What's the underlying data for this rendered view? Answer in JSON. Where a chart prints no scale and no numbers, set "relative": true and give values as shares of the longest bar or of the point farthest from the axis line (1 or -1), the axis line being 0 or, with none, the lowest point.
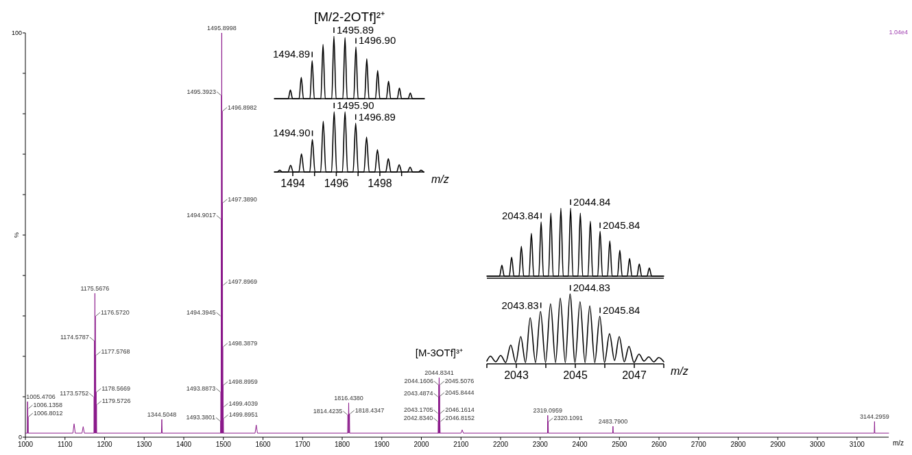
{
  "chart_data": [
    {
      "type": "line",
      "xlabel": "m/z",
      "ylabel": "%",
      "xlim": [
        1000,
        3180
      ],
      "ylim": [
        0,
        100
      ],
      "xticks": [
        1000,
        1100,
        1200,
        1300,
        1400,
        1500,
        1600,
        1700,
        1800,
        1900,
        2000,
        2100,
        2200,
        2300,
        2400,
        2500,
        2600,
        2700,
        2800,
        2900,
        3000,
        3100
      ],
      "yticks": [
        0,
        {
          "value": 10,
          "label": null
        },
        {
          "value": 20,
          "label": null
        },
        {
          "value": 30,
          "label": null
        },
        {
          "value": 40,
          "label": null
        },
        {
          "value": 50,
          "label": null
        },
        {
          "value": 60,
          "label": null
        },
        {
          "value": 70,
          "label": null
        },
        {
          "value": 80,
          "label": null
        },
        {
          "value": 90,
          "label": null
        },
        100
      ],
      "x": [
        1000,
        1004.9,
        1005.4706,
        1005.8,
        1006.1358,
        1006.45,
        1006.8012,
        1007.3,
        1120,
        1123,
        1126,
        1143,
        1146,
        1149,
        1173.1,
        1173.5752,
        1174.1,
        1174.5787,
        1175.1,
        1175.5676,
        1176.1,
        1176.572,
        1177.1,
        1177.5768,
        1178.1,
        1178.5669,
        1179.1,
        1179.5726,
        1180.1,
        1343.5,
        1344.5048,
        1345.5,
        1492.9,
        1493.3801,
        1493.6,
        1493.8873,
        1494.1,
        1494.3945,
        1494.65,
        1494.9017,
        1495.15,
        1495.3923,
        1495.65,
        1495.8998,
        1496.15,
        1496.5,
        1496.8982,
        1497.15,
        1497.389,
        1497.65,
        1497.8969,
        1498.15,
        1498.3879,
        1498.65,
        1498.8959,
        1499.15,
        1499.4039,
        1499.65,
        1499.8951,
        1500.3,
        1580,
        1583,
        1586,
        1813.8,
        1814.4235,
        1815.4,
        1816.438,
        1817.4,
        1818.4347,
        1819,
        2042.5,
        2042.834,
        2043,
        2043.1705,
        2043.33,
        2043.4874,
        2043.82,
        2044.1606,
        2044.5,
        2044.8341,
        2045.17,
        2045.5076,
        2045.68,
        2045.8444,
        2046,
        2046.1614,
        2046.5,
        2046.8152,
        2047.3,
        2100,
        2103,
        2106,
        2318.5,
        2319.0959,
        2319.6,
        2320.1091,
        2320.6,
        2483,
        2483.79,
        2484.6,
        3143.5,
        3144.2959,
        3145,
        3180
      ],
      "series": [
        {
          "color": "#8b1a8b",
          "values": [
            1,
            1,
            8.8,
            1,
            7.1,
            1,
            5.1,
            1,
            1,
            3.3,
            1,
            1,
            2.6,
            1,
            1,
            10,
            1,
            23.9,
            1,
            35.6,
            1,
            30,
            1,
            20.3,
            1,
            11.2,
            1,
            8.1,
            1,
            1,
            4.4,
            1,
            1,
            4,
            1,
            11.2,
            1,
            30,
            1,
            54,
            1,
            84.6,
            1,
            100,
            1,
            1,
            80.7,
            1,
            58,
            1,
            37.6,
            1,
            22.4,
            1,
            12.9,
            1,
            7.5,
            1,
            4.7,
            1,
            1,
            3,
            1,
            1,
            5.6,
            1,
            8.5,
            1,
            5.8,
            1,
            1,
            3.9,
            1,
            5.9,
            1,
            10,
            1,
            13,
            1,
            14.7,
            1,
            13,
            1,
            10.2,
            1,
            5.9,
            1,
            3.9,
            1,
            1,
            1.8,
            1,
            1,
            5.4,
            1,
            3.9,
            1,
            1,
            2.7,
            1,
            1,
            3.9,
            1,
            1
          ]
        }
      ],
      "annotations": [
        {
          "text": "1005.4706",
          "x": 1005.4706,
          "y": 8.8
        },
        {
          "text": "1006.1358",
          "x": 1006.1358,
          "y": 7.1
        },
        {
          "text": "1006.8012",
          "x": 1006.8012,
          "y": 5.1
        },
        {
          "text": "1173.5752",
          "x": 1173.5752,
          "y": 10
        },
        {
          "text": "1174.5787",
          "x": 1174.5787,
          "y": 23.9
        },
        {
          "text": "1175.5676",
          "x": 1175.5676,
          "y": 35.6
        },
        {
          "text": "1176.5720",
          "x": 1176.572,
          "y": 30
        },
        {
          "text": "1177.5768",
          "x": 1177.5768,
          "y": 20.3
        },
        {
          "text": "1178.5669",
          "x": 1178.5669,
          "y": 11.2
        },
        {
          "text": "1179.5726",
          "x": 1179.5726,
          "y": 8.1
        },
        {
          "text": "1344.5048",
          "x": 1344.5048,
          "y": 4.4
        },
        {
          "text": "1493.3801",
          "x": 1493.3801,
          "y": 4
        },
        {
          "text": "1493.8873",
          "x": 1493.8873,
          "y": 11.2
        },
        {
          "text": "1494.3945",
          "x": 1494.3945,
          "y": 30
        },
        {
          "text": "1494.9017",
          "x": 1494.9017,
          "y": 54
        },
        {
          "text": "1495.3923",
          "x": 1495.3923,
          "y": 84.6
        },
        {
          "text": "1495.8998",
          "x": 1495.8998,
          "y": 100
        },
        {
          "text": "1496.8982",
          "x": 1496.8982,
          "y": 80.7
        },
        {
          "text": "1497.3890",
          "x": 1497.389,
          "y": 58
        },
        {
          "text": "1497.8969",
          "x": 1497.8969,
          "y": 37.6
        },
        {
          "text": "1498.3879",
          "x": 1498.3879,
          "y": 22.4
        },
        {
          "text": "1498.8959",
          "x": 1498.8959,
          "y": 12.9
        },
        {
          "text": "1499.4039",
          "x": 1499.4039,
          "y": 7.5
        },
        {
          "text": "1499.8951",
          "x": 1499.8951,
          "y": 4.7
        },
        {
          "text": "1814.4235",
          "x": 1814.4235,
          "y": 5.6
        },
        {
          "text": "1816.4380",
          "x": 1816.438,
          "y": 8.5
        },
        {
          "text": "1818.4347",
          "x": 1818.4347,
          "y": 5.8
        },
        {
          "text": "2042.8340",
          "x": 2042.834,
          "y": 3.9
        },
        {
          "text": "2043.1705",
          "x": 2043.1705,
          "y": 5.9
        },
        {
          "text": "2043.4874",
          "x": 2043.4874,
          "y": 10
        },
        {
          "text": "2044.1606",
          "x": 2044.1606,
          "y": 13
        },
        {
          "text": "2044.8341",
          "x": 2044.8341,
          "y": 14.7
        },
        {
          "text": "[M-3OTf]³⁺",
          "x": 2044.8341,
          "y": 14.7
        },
        {
          "text": "2045.5076",
          "x": 2045.5076,
          "y": 13
        },
        {
          "text": "2045.8444",
          "x": 2045.8444,
          "y": 10.2
        },
        {
          "text": "2046.1614",
          "x": 2046.1614,
          "y": 5.9
        },
        {
          "text": "2046.8152",
          "x": 2046.8152,
          "y": 3.9
        },
        {
          "text": "2319.0959",
          "x": 2319.0959,
          "y": 5.4
        },
        {
          "text": "2320.1091",
          "x": 2320.1091,
          "y": 3.9
        },
        {
          "text": "2483.7900",
          "x": 2483.79,
          "y": 2.7
        },
        {
          "text": "3144.2959",
          "x": 3144.2959,
          "y": 3.9
        },
        "1.04e4"
      ]
    },
    {
      "type": "line",
      "title": "[M/2-2OTf]²⁺",
      "relative": true,
      "xlim": [
        1493.15,
        1500.05
      ],
      "x": [
        1493.15,
        1493.79,
        1493.89,
        1493.99,
        1494.29,
        1494.39,
        1494.49,
        1494.79,
        1494.89,
        1494.99,
        1495.29,
        1495.39,
        1495.49,
        1495.79,
        1495.89,
        1495.99,
        1496.3,
        1496.4,
        1496.5,
        1496.8,
        1496.9,
        1497,
        1497.3,
        1497.4,
        1497.5,
        1497.8,
        1497.9,
        1498,
        1498.3,
        1498.4,
        1498.5,
        1498.8,
        1498.9,
        1499,
        1499.3,
        1499.4,
        1499.5,
        1500.05
      ],
      "series": [
        {
          "color": "#000000",
          "values": [
            0,
            0,
            0.14,
            0,
            0,
            0.34,
            0,
            0,
            0.61,
            0,
            0,
            0.87,
            0,
            0,
            1,
            0,
            0,
            0.98,
            0,
            0,
            0.83,
            0,
            0,
            0.64,
            0,
            0,
            0.45,
            0,
            0,
            0.28,
            0,
            0,
            0.17,
            0,
            0,
            0.09,
            0,
            0
          ]
        }
      ],
      "annotations": [
        {
          "text": "1494.89",
          "x": 1494.89,
          "y": 0.61
        },
        {
          "text": "1495.89",
          "x": 1495.89,
          "y": 1
        },
        {
          "text": "1496.90",
          "x": 1496.9,
          "y": 0.83
        }
      ]
    },
    {
      "type": "line",
      "xlabel": "m/z",
      "relative": true,
      "tick_labels": "x",
      "xlim": [
        1493.15,
        1500.05
      ],
      "xticks": [
        1494,
        {
          "value": 1495,
          "label": null
        },
        1496,
        {
          "value": 1497,
          "label": null
        },
        1498,
        {
          "value": 1499,
          "label": null
        }
      ],
      "x": [
        1493.15,
        1493.28,
        1493.4,
        1493.52,
        1493.78,
        1493.9,
        1494.02,
        1494.28,
        1494.4,
        1494.52,
        1494.78,
        1494.9,
        1495.02,
        1495.28,
        1495.4,
        1495.52,
        1495.78,
        1495.9,
        1496.02,
        1496.28,
        1496.4,
        1496.52,
        1496.77,
        1496.89,
        1497.01,
        1497.27,
        1497.39,
        1497.51,
        1497.77,
        1497.89,
        1498.01,
        1498.27,
        1498.39,
        1498.51,
        1498.77,
        1498.89,
        1499.01,
        1499.27,
        1499.39,
        1499.51,
        1499.77,
        1499.89,
        1500.01
      ],
      "series": [
        {
          "color": "#000000",
          "values": [
            0,
            0,
            0.03,
            0,
            0,
            0.11,
            0,
            0,
            0.3,
            0,
            0,
            0.54,
            0,
            0,
            0.84,
            0,
            0,
            1,
            0,
            0,
            1,
            0,
            0,
            0.81,
            0,
            0,
            0.58,
            0,
            0,
            0.37,
            0,
            0,
            0.22,
            0,
            0,
            0.12,
            0,
            0,
            0.08,
            0,
            0,
            0.03,
            0
          ]
        }
      ],
      "annotations": [
        {
          "text": "1494.90",
          "x": 1494.9,
          "y": 0.54
        },
        {
          "text": "1495.90",
          "x": 1495.9,
          "y": 1
        },
        {
          "text": "1496.89",
          "x": 1496.89,
          "y": 0.81
        }
      ]
    },
    {
      "type": "line",
      "relative": true,
      "xlim": [
        2042,
        2048
      ],
      "x": [
        2042,
        2042.43,
        2042.51,
        2042.59,
        2042.76,
        2042.84,
        2042.92,
        2043.09,
        2043.17,
        2043.25,
        2043.43,
        2043.51,
        2043.59,
        2043.76,
        2043.84,
        2043.92,
        2044.09,
        2044.17,
        2044.25,
        2044.43,
        2044.51,
        2044.59,
        2044.76,
        2044.84,
        2044.92,
        2045.09,
        2045.17,
        2045.25,
        2045.43,
        2045.51,
        2045.59,
        2045.76,
        2045.84,
        2045.92,
        2046.09,
        2046.17,
        2046.25,
        2046.43,
        2046.51,
        2046.59,
        2046.76,
        2046.84,
        2046.92,
        2047.09,
        2047.17,
        2047.25,
        2047.43,
        2047.51,
        2047.59,
        2048
      ],
      "series": [
        {
          "color": "#000000",
          "values": [
            0,
            0,
            0.16,
            0,
            0,
            0.28,
            0,
            0,
            0.44,
            0,
            0,
            0.63,
            0,
            0,
            0.8,
            0,
            0,
            0.93,
            0,
            0,
            1,
            0,
            0,
            1,
            0,
            0,
            0.93,
            0,
            0,
            0.81,
            0,
            0,
            0.66,
            0,
            0,
            0.52,
            0,
            0,
            0.38,
            0,
            0,
            0.26,
            0,
            0,
            0.18,
            0,
            0,
            0.12,
            0,
            0
          ]
        }
      ],
      "annotations": [
        {
          "text": "2043.84",
          "x": 2043.84,
          "y": 0.8
        },
        {
          "text": "2044.84",
          "x": 2044.84,
          "y": 1
        },
        {
          "text": "2045.84",
          "x": 2045.84,
          "y": 0.66
        }
      ]
    },
    {
      "type": "line",
      "xlabel": "m/z",
      "relative": true,
      "tick_labels": "x",
      "xlim": [
        2042,
        2048
      ],
      "xticks": [
        {
          "value": 2042,
          "label": null
        },
        2043,
        {
          "value": 2044,
          "label": null
        },
        2045,
        {
          "value": 2046,
          "label": null
        },
        2047,
        {
          "value": 2048,
          "label": null
        }
      ],
      "x": [
        2042,
        2042.12,
        2042.3,
        2042.47,
        2042.64,
        2042.81,
        2042.98,
        2043.15,
        2043.31,
        2043.47,
        2043.65,
        2043.82,
        2043.99,
        2044.16,
        2044.33,
        2044.49,
        2044.66,
        2044.82,
        2044.99,
        2045.16,
        2045.33,
        2045.49,
        2045.66,
        2045.83,
        2045.99,
        2046.16,
        2046.33,
        2046.49,
        2046.66,
        2046.82,
        2046.99,
        2047.16,
        2047.33,
        2047.49,
        2047.66,
        2047.83,
        2048
      ],
      "series": [
        {
          "color": "#000000",
          "values": [
            0.04,
            0.11,
            0.03,
            0.12,
            0.02,
            0.27,
            0.02,
            0.39,
            0.02,
            0.66,
            0.02,
            0.75,
            0.02,
            0.86,
            0.02,
            0.94,
            0.02,
            1,
            0.02,
            0.89,
            0.02,
            0.83,
            0.02,
            0.68,
            0.02,
            0.43,
            0.05,
            0.39,
            0.03,
            0.25,
            0.02,
            0.14,
            0.04,
            0.1,
            0.03,
            0.09,
            0.03
          ]
        }
      ],
      "annotations": [
        {
          "text": "2043.83",
          "x": 2043.83,
          "y": 0.75
        },
        {
          "text": "2044.83",
          "x": 2044.83,
          "y": 1
        },
        {
          "text": "2045.84",
          "x": 2045.84,
          "y": 0.68
        }
      ]
    }
  ]
}
